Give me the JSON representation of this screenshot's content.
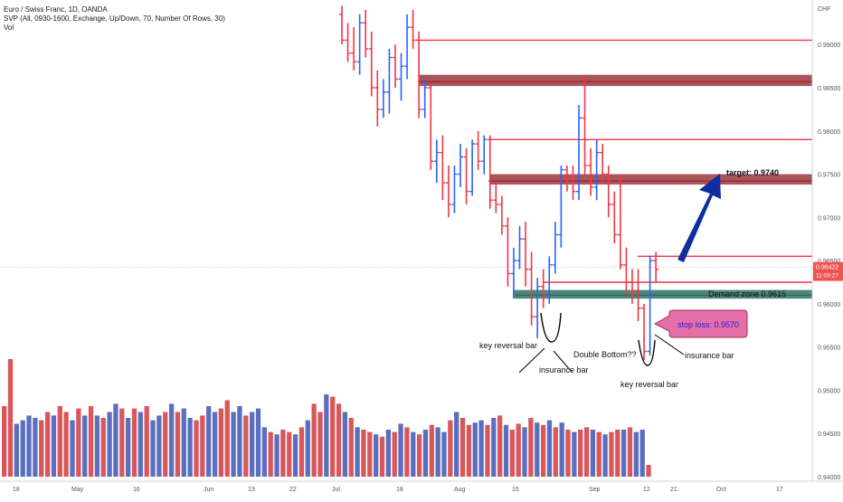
{
  "legend": {
    "symbol_line": "Euro / Swiss Franc, 1D, OANDA",
    "svp_line": "SVP (All, 0930-1600, Exchange, Up/Down, 70, Number Of Rows, 30)",
    "vol_line": "Vol"
  },
  "price_axis": {
    "currency": "CHF",
    "last_price": "0.96422",
    "countdown": "11:03:27",
    "last_price_bg": "#ef5350"
  },
  "colors": {
    "up": "#2962ff",
    "down": "#f23645",
    "vol_up": "#5b6fbf",
    "vol_down": "#d9575b",
    "zone_red": "#8b1e24",
    "zone_green": "#1b6b5a",
    "arrow": "#0d2e9c",
    "stop_label_bg": "#e66fa8",
    "stop_label_text": "#1a1adb"
  },
  "annotations": {
    "target": "target: 0.9740",
    "demand": "Demand zone 0.9615",
    "stop_loss": "stop loss: 0.9570",
    "key_reversal_1": "key reversal bar",
    "insurance_1": "insurance bar",
    "double_bottom": "Double Bottom??",
    "insurance_2": "insurance bar",
    "key_reversal_2": "key reversal bar"
  },
  "chart_data": {
    "type": "candlestick",
    "symbol": "EURCHF",
    "timeframe": "1D",
    "y_axis": {
      "ticks": [
        "0.99000",
        "0.98500",
        "0.98000",
        "0.97500",
        "0.97000",
        "0.96500",
        "0.96000",
        "0.95500",
        "0.95000",
        "0.94500",
        "0.94000"
      ],
      "min": 0.94,
      "max": 0.994
    },
    "x_axis": {
      "ticks": [
        "18",
        "May",
        "16",
        "Jun",
        "13",
        "22",
        "Jul",
        "18",
        "Aug",
        "15",
        "Sep",
        "12",
        "21",
        "Oct",
        "17"
      ]
    },
    "horizontal_levels": [
      0.9905,
      0.9857,
      0.979,
      0.9742,
      0.9655,
      0.9625,
      0.961
    ],
    "zones": [
      {
        "name": "supply",
        "low": 0.9852,
        "high": 0.9865
      },
      {
        "name": "target",
        "low": 0.9738,
        "high": 0.975,
        "label": "target: 0.9740"
      },
      {
        "name": "demand",
        "low": 0.9606,
        "high": 0.9616,
        "label": "Demand zone 0.9615"
      }
    ],
    "last_price": 0.96422,
    "bars": [
      {
        "i": 0,
        "o": 0.9935,
        "h": 0.9945,
        "l": 0.99,
        "c": 0.9905
      },
      {
        "i": 1,
        "o": 0.9905,
        "h": 0.9925,
        "l": 0.988,
        "c": 0.989
      },
      {
        "i": 2,
        "o": 0.989,
        "h": 0.992,
        "l": 0.987,
        "c": 0.988
      },
      {
        "i": 3,
        "o": 0.988,
        "h": 0.9935,
        "l": 0.9865,
        "c": 0.9925
      },
      {
        "i": 4,
        "o": 0.9925,
        "h": 0.994,
        "l": 0.9885,
        "c": 0.9895
      },
      {
        "i": 5,
        "o": 0.9895,
        "h": 0.9915,
        "l": 0.984,
        "c": 0.985
      },
      {
        "i": 6,
        "o": 0.985,
        "h": 0.987,
        "l": 0.9805,
        "c": 0.9825
      },
      {
        "i": 7,
        "o": 0.9825,
        "h": 0.986,
        "l": 0.9815,
        "c": 0.9845
      },
      {
        "i": 8,
        "o": 0.9845,
        "h": 0.9895,
        "l": 0.982,
        "c": 0.9885
      },
      {
        "i": 9,
        "o": 0.9885,
        "h": 0.99,
        "l": 0.985,
        "c": 0.986
      },
      {
        "i": 10,
        "o": 0.986,
        "h": 0.989,
        "l": 0.9835,
        "c": 0.9875
      },
      {
        "i": 11,
        "o": 0.9875,
        "h": 0.9935,
        "l": 0.986,
        "c": 0.992
      },
      {
        "i": 12,
        "o": 0.992,
        "h": 0.994,
        "l": 0.9895,
        "c": 0.9905
      },
      {
        "i": 13,
        "o": 0.9905,
        "h": 0.9915,
        "l": 0.9815,
        "c": 0.9825
      },
      {
        "i": 14,
        "o": 0.9825,
        "h": 0.986,
        "l": 0.9815,
        "c": 0.985
      },
      {
        "i": 15,
        "o": 0.985,
        "h": 0.9855,
        "l": 0.9755,
        "c": 0.9765
      },
      {
        "i": 16,
        "o": 0.9765,
        "h": 0.979,
        "l": 0.974,
        "c": 0.9775
      },
      {
        "i": 17,
        "o": 0.9775,
        "h": 0.9795,
        "l": 0.972,
        "c": 0.974
      },
      {
        "i": 18,
        "o": 0.974,
        "h": 0.976,
        "l": 0.97,
        "c": 0.9715
      },
      {
        "i": 19,
        "o": 0.9715,
        "h": 0.976,
        "l": 0.9705,
        "c": 0.975
      },
      {
        "i": 20,
        "o": 0.975,
        "h": 0.9785,
        "l": 0.9735,
        "c": 0.977
      },
      {
        "i": 21,
        "o": 0.977,
        "h": 0.978,
        "l": 0.9715,
        "c": 0.973
      },
      {
        "i": 22,
        "o": 0.973,
        "h": 0.979,
        "l": 0.9725,
        "c": 0.9785
      },
      {
        "i": 23,
        "o": 0.9785,
        "h": 0.98,
        "l": 0.9755,
        "c": 0.9765
      },
      {
        "i": 24,
        "o": 0.9765,
        "h": 0.9795,
        "l": 0.975,
        "c": 0.979
      },
      {
        "i": 25,
        "o": 0.979,
        "h": 0.9795,
        "l": 0.971,
        "c": 0.972
      },
      {
        "i": 26,
        "o": 0.972,
        "h": 0.974,
        "l": 0.9705,
        "c": 0.9715
      },
      {
        "i": 27,
        "o": 0.9715,
        "h": 0.9725,
        "l": 0.968,
        "c": 0.969
      },
      {
        "i": 28,
        "o": 0.969,
        "h": 0.97,
        "l": 0.962,
        "c": 0.9635
      },
      {
        "i": 29,
        "o": 0.9635,
        "h": 0.9665,
        "l": 0.961,
        "c": 0.965
      },
      {
        "i": 30,
        "o": 0.965,
        "h": 0.969,
        "l": 0.964,
        "c": 0.9675
      },
      {
        "i": 31,
        "o": 0.9675,
        "h": 0.9695,
        "l": 0.962,
        "c": 0.964
      },
      {
        "i": 32,
        "o": 0.964,
        "h": 0.966,
        "l": 0.9575,
        "c": 0.9585
      },
      {
        "i": 33,
        "o": 0.9585,
        "h": 0.963,
        "l": 0.956,
        "c": 0.962
      },
      {
        "i": 34,
        "o": 0.962,
        "h": 0.964,
        "l": 0.9595,
        "c": 0.961
      },
      {
        "i": 35,
        "o": 0.961,
        "h": 0.9655,
        "l": 0.96,
        "c": 0.9645
      },
      {
        "i": 36,
        "o": 0.9645,
        "h": 0.9695,
        "l": 0.9635,
        "c": 0.968
      },
      {
        "i": 37,
        "o": 0.968,
        "h": 0.976,
        "l": 0.9665,
        "c": 0.9755
      },
      {
        "i": 38,
        "o": 0.9755,
        "h": 0.976,
        "l": 0.973,
        "c": 0.9745
      },
      {
        "i": 39,
        "o": 0.9745,
        "h": 0.976,
        "l": 0.972,
        "c": 0.973
      },
      {
        "i": 40,
        "o": 0.973,
        "h": 0.983,
        "l": 0.972,
        "c": 0.9815
      },
      {
        "i": 41,
        "o": 0.9815,
        "h": 0.9865,
        "l": 0.975,
        "c": 0.976
      },
      {
        "i": 42,
        "o": 0.976,
        "h": 0.978,
        "l": 0.9725,
        "c": 0.9735
      },
      {
        "i": 43,
        "o": 0.9735,
        "h": 0.979,
        "l": 0.972,
        "c": 0.9775
      },
      {
        "i": 44,
        "o": 0.9775,
        "h": 0.9785,
        "l": 0.974,
        "c": 0.975
      },
      {
        "i": 45,
        "o": 0.975,
        "h": 0.976,
        "l": 0.97,
        "c": 0.9715
      },
      {
        "i": 46,
        "o": 0.9715,
        "h": 0.973,
        "l": 0.967,
        "c": 0.968
      },
      {
        "i": 47,
        "o": 0.968,
        "h": 0.975,
        "l": 0.964,
        "c": 0.9645
      },
      {
        "i": 48,
        "o": 0.9645,
        "h": 0.9665,
        "l": 0.961,
        "c": 0.9625
      },
      {
        "i": 49,
        "o": 0.9625,
        "h": 0.964,
        "l": 0.96,
        "c": 0.9615
      },
      {
        "i": 50,
        "o": 0.9615,
        "h": 0.964,
        "l": 0.958,
        "c": 0.9595
      },
      {
        "i": 51,
        "o": 0.9595,
        "h": 0.96,
        "l": 0.9535,
        "c": 0.9545
      },
      {
        "i": 52,
        "o": 0.9545,
        "h": 0.9655,
        "l": 0.954,
        "c": 0.965
      },
      {
        "i": 53,
        "o": 0.965,
        "h": 0.966,
        "l": 0.9625,
        "c": 0.964
      }
    ],
    "volume": {
      "values": [
        0.6,
        1.0,
        0.45,
        0.48,
        0.52,
        0.5,
        0.48,
        0.55,
        0.52,
        0.6,
        0.55,
        0.48,
        0.58,
        0.52,
        0.6,
        0.52,
        0.5,
        0.55,
        0.62,
        0.58,
        0.5,
        0.58,
        0.55,
        0.6,
        0.48,
        0.52,
        0.55,
        0.62,
        0.55,
        0.58,
        0.5,
        0.48,
        0.52,
        0.6,
        0.55,
        0.58,
        0.65,
        0.55,
        0.6,
        0.52,
        0.55,
        0.58,
        0.42,
        0.38,
        0.36,
        0.4,
        0.38,
        0.36,
        0.42,
        0.48,
        0.62,
        0.55,
        0.7,
        0.68,
        0.62,
        0.55,
        0.5,
        0.42,
        0.4,
        0.38,
        0.36,
        0.34,
        0.4,
        0.38,
        0.45,
        0.42,
        0.38,
        0.36,
        0.4,
        0.44,
        0.42,
        0.38,
        0.48,
        0.55,
        0.5,
        0.44,
        0.46,
        0.48,
        0.44,
        0.5,
        0.52,
        0.44,
        0.4,
        0.45,
        0.42,
        0.5,
        0.46,
        0.44,
        0.48,
        0.42,
        0.46,
        0.4,
        0.38,
        0.4,
        0.42,
        0.4,
        0.38,
        0.36,
        0.38,
        0.4,
        0.4,
        0.42,
        0.38,
        0.4,
        0.1
      ],
      "colors": [
        "d",
        "d",
        "u",
        "u",
        "u",
        "u",
        "d",
        "d",
        "u",
        "d",
        "d",
        "u",
        "d",
        "u",
        "d",
        "u",
        "d",
        "u",
        "u",
        "d",
        "u",
        "d",
        "u",
        "d",
        "u",
        "u",
        "d",
        "u",
        "d",
        "u",
        "u",
        "d",
        "d",
        "u",
        "u",
        "d",
        "d",
        "u",
        "u",
        "d",
        "u",
        "u",
        "u",
        "d",
        "u",
        "d",
        "d",
        "u",
        "d",
        "u",
        "d",
        "d",
        "u",
        "d",
        "d",
        "u",
        "d",
        "u",
        "d",
        "d",
        "u",
        "d",
        "u",
        "d",
        "u",
        "d",
        "u",
        "d",
        "u",
        "d",
        "u",
        "u",
        "d",
        "u",
        "d",
        "d",
        "u",
        "u",
        "d",
        "u",
        "d",
        "u",
        "d",
        "d",
        "u",
        "d",
        "u",
        "d",
        "u",
        "d",
        "u",
        "d",
        "u",
        "d",
        "d",
        "u",
        "d",
        "u",
        "d",
        "d",
        "u",
        "d",
        "u",
        "u",
        "d"
      ]
    }
  }
}
